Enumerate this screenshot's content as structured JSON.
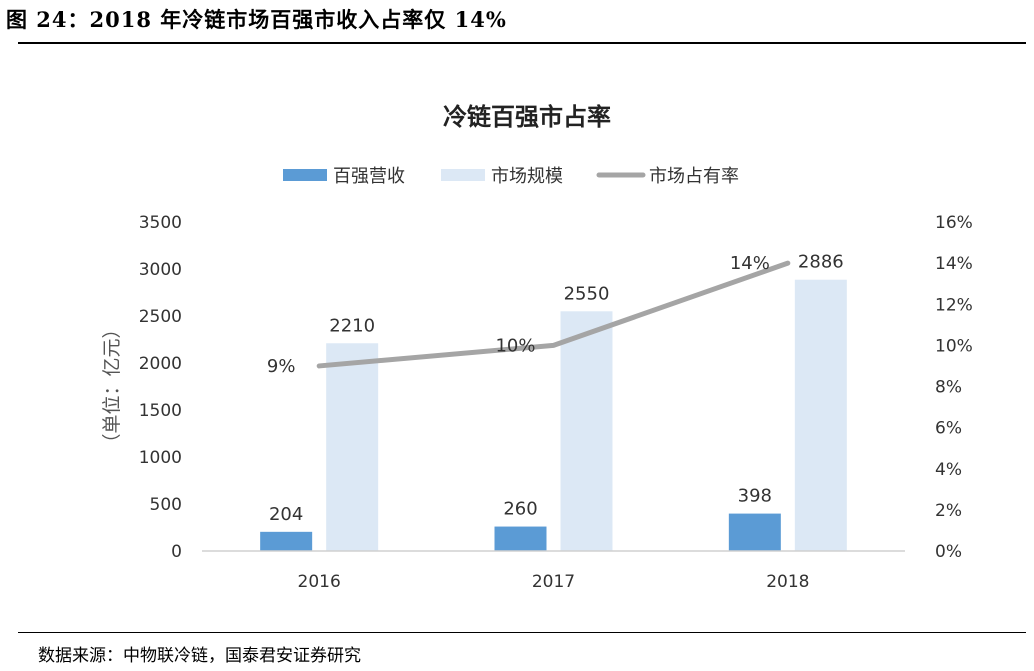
{
  "figure": {
    "title": "图 24：2018 年冷链市场百强市收入占率仅 14%",
    "source": "数据来源：中物联冷链，国泰君安证券研究"
  },
  "chart_data": {
    "type": "bar",
    "title": "冷链百强市占率",
    "categories": [
      "2016",
      "2017",
      "2018"
    ],
    "series": [
      {
        "name": "百强营收",
        "type": "bar",
        "axis": "left",
        "color": "#5b9bd5",
        "values": [
          204,
          260,
          398
        ]
      },
      {
        "name": "市场规模",
        "type": "bar",
        "axis": "left",
        "color": "#dce8f5",
        "values": [
          2210,
          2550,
          2886
        ]
      },
      {
        "name": "市场占有率",
        "type": "line",
        "axis": "right",
        "color": "#a5a5a5",
        "values": [
          9,
          10,
          14
        ],
        "labels": [
          "9%",
          "10%",
          "14%"
        ]
      }
    ],
    "ylabel": "（单位：亿元）",
    "ylim": [
      0,
      3500
    ],
    "yticks": [
      "0",
      "500",
      "1000",
      "1500",
      "2000",
      "2500",
      "3000",
      "3500"
    ],
    "y2lim": [
      0,
      16
    ],
    "y2ticks": [
      "0%",
      "2%",
      "4%",
      "6%",
      "8%",
      "10%",
      "12%",
      "14%",
      "16%"
    ],
    "legend_position": "top-center",
    "grid": false
  }
}
